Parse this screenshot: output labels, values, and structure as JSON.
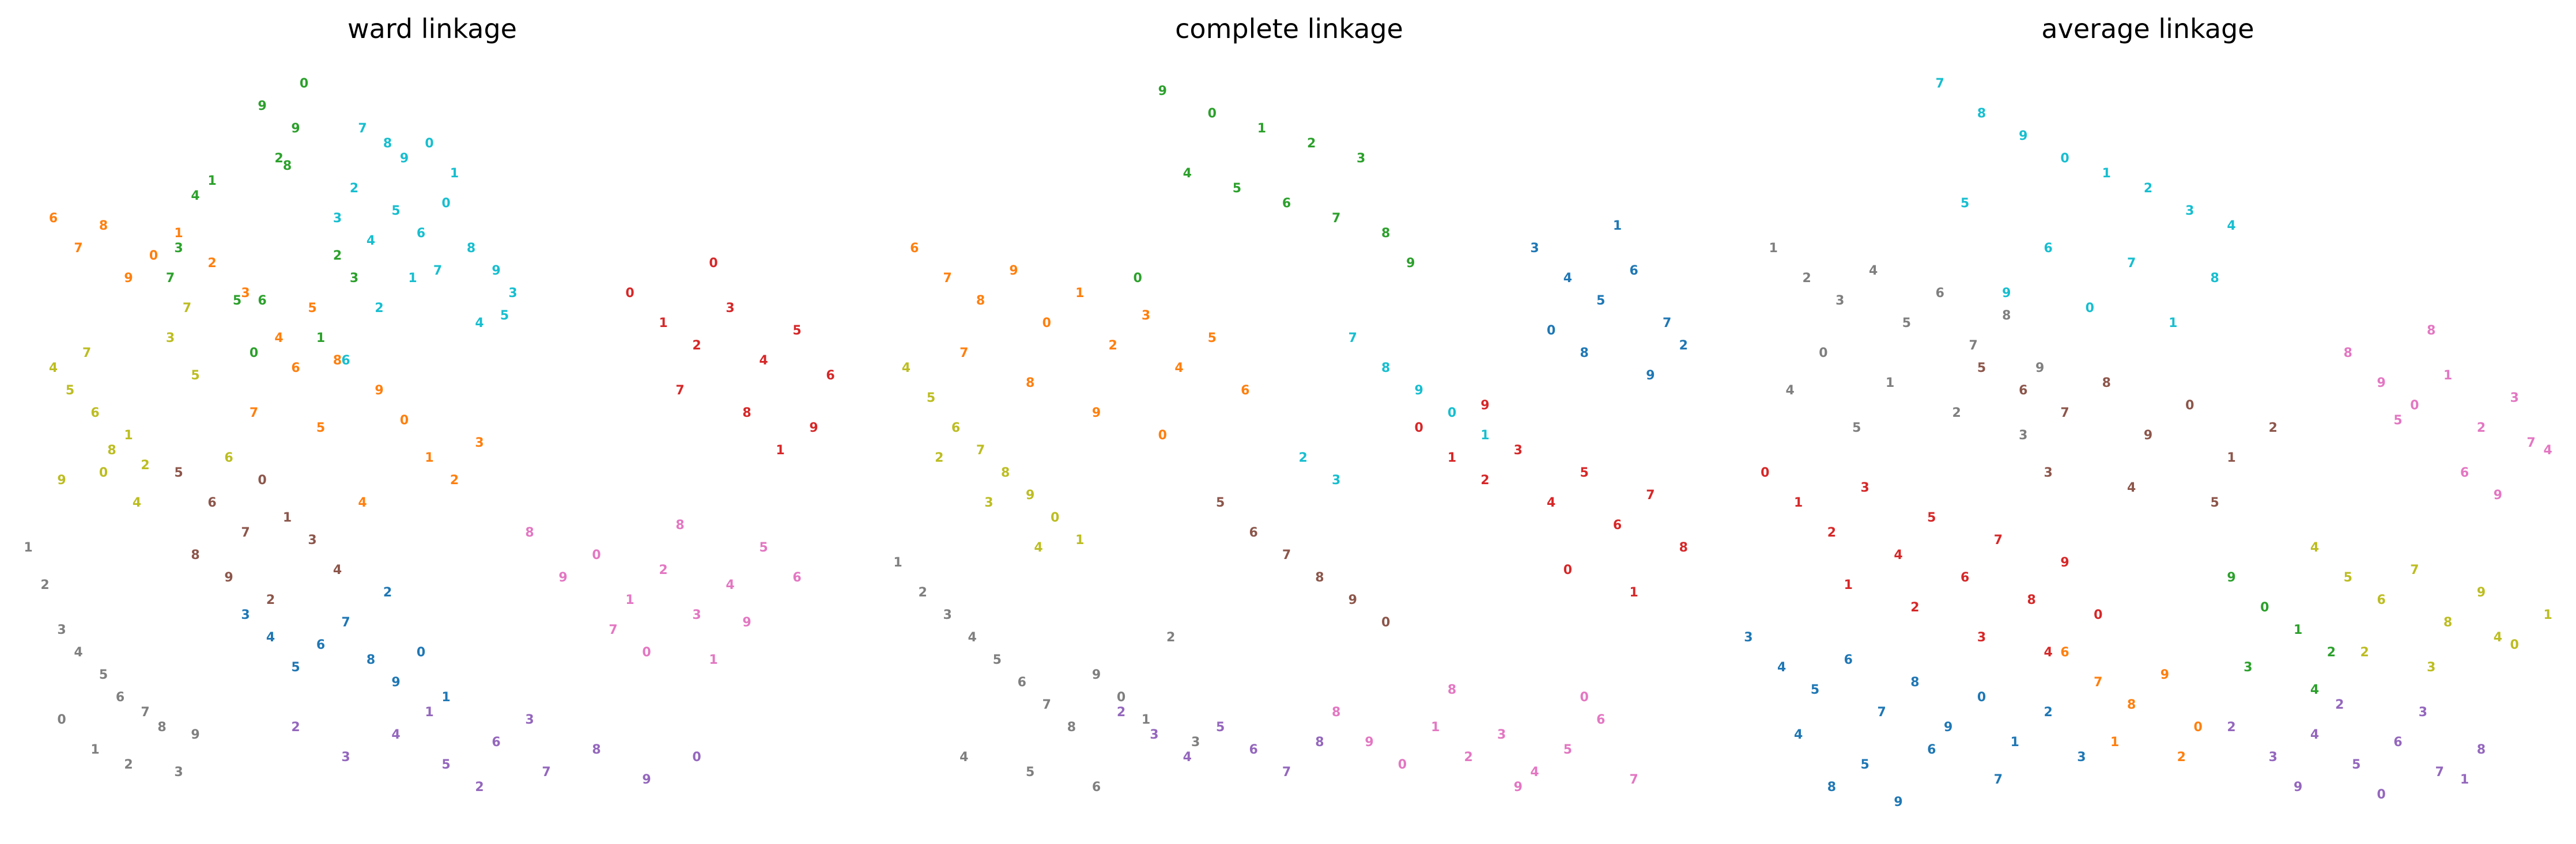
{
  "colors": {
    "0": "#d62728",
    "1": "#1f77b4",
    "2": "#ff7f0e",
    "3": "#2ca02c",
    "4": "#9467bd",
    "5": "#8c564b",
    "6": "#e377c2",
    "7": "#7f7f7f",
    "8": "#bcbd22",
    "9": "#17becf"
  },
  "chart_data": [
    {
      "type": "scatter",
      "title": "ward linkage",
      "grid": false,
      "axes": "off",
      "cluster_colors": [
        "#d62728",
        "#1f77b4",
        "#ff7f0e",
        "#2ca02c",
        "#9467bd",
        "#8c564b",
        "#e377c2",
        "#7f7f7f",
        "#bcbd22",
        "#17becf"
      ],
      "groups": [
        {
          "cluster": 3,
          "x": [
            0.3,
            0.35,
            0.24,
            0.32,
            0.2,
            0.22,
            0.27,
            0.3,
            0.19,
            0.33,
            0.34,
            0.29,
            0.37,
            0.39,
            0.41
          ],
          "y": [
            0.93,
            0.96,
            0.83,
            0.86,
            0.74,
            0.81,
            0.67,
            0.67,
            0.7,
            0.85,
            0.9,
            0.6,
            0.62,
            0.73,
            0.7
          ]
        },
        {
          "cluster": 9,
          "x": [
            0.42,
            0.45,
            0.47,
            0.5,
            0.53,
            0.41,
            0.39,
            0.43,
            0.46,
            0.49,
            0.51,
            0.55,
            0.58,
            0.52,
            0.48,
            0.44,
            0.6,
            0.56,
            0.59,
            0.4
          ],
          "y": [
            0.9,
            0.88,
            0.86,
            0.88,
            0.84,
            0.82,
            0.78,
            0.75,
            0.79,
            0.76,
            0.71,
            0.74,
            0.71,
            0.8,
            0.7,
            0.66,
            0.68,
            0.64,
            0.65,
            0.59
          ]
        },
        {
          "cluster": 8,
          "x": [
            0.05,
            0.07,
            0.1,
            0.09,
            0.12,
            0.06,
            0.11,
            0.14,
            0.16,
            0.19,
            0.15,
            0.22,
            0.26,
            0.21
          ],
          "y": [
            0.58,
            0.55,
            0.52,
            0.6,
            0.47,
            0.43,
            0.44,
            0.49,
            0.45,
            0.62,
            0.4,
            0.57,
            0.46,
            0.66
          ]
        },
        {
          "cluster": 2,
          "x": [
            0.05,
            0.08,
            0.11,
            0.14,
            0.17,
            0.2,
            0.24,
            0.28,
            0.32,
            0.36,
            0.34,
            0.29,
            0.39,
            0.44,
            0.47,
            0.5,
            0.53,
            0.56,
            0.42,
            0.37
          ],
          "y": [
            0.78,
            0.74,
            0.77,
            0.7,
            0.73,
            0.76,
            0.72,
            0.68,
            0.62,
            0.66,
            0.58,
            0.52,
            0.59,
            0.55,
            0.51,
            0.46,
            0.43,
            0.48,
            0.4,
            0.5
          ]
        },
        {
          "cluster": 7,
          "x": [
            0.02,
            0.04,
            0.06,
            0.08,
            0.11,
            0.13,
            0.16,
            0.18,
            0.22,
            0.06,
            0.1,
            0.14,
            0.2
          ],
          "y": [
            0.34,
            0.29,
            0.23,
            0.2,
            0.17,
            0.14,
            0.12,
            0.1,
            0.09,
            0.11,
            0.07,
            0.05,
            0.04
          ]
        },
        {
          "cluster": 5,
          "x": [
            0.2,
            0.24,
            0.28,
            0.22,
            0.26,
            0.3,
            0.33,
            0.31,
            0.36,
            0.39
          ],
          "y": [
            0.44,
            0.4,
            0.36,
            0.33,
            0.3,
            0.43,
            0.38,
            0.27,
            0.35,
            0.31
          ]
        },
        {
          "cluster": 1,
          "x": [
            0.28,
            0.31,
            0.34,
            0.37,
            0.4,
            0.43,
            0.46,
            0.49,
            0.52,
            0.45
          ],
          "y": [
            0.25,
            0.22,
            0.18,
            0.21,
            0.24,
            0.19,
            0.16,
            0.2,
            0.14,
            0.28
          ]
        },
        {
          "cluster": 4,
          "x": [
            0.34,
            0.4,
            0.46,
            0.52,
            0.58,
            0.64,
            0.7,
            0.76,
            0.82,
            0.5,
            0.56,
            0.62
          ],
          "y": [
            0.1,
            0.06,
            0.09,
            0.05,
            0.08,
            0.04,
            0.07,
            0.03,
            0.06,
            0.12,
            0.02,
            0.11
          ]
        },
        {
          "cluster": 6,
          "x": [
            0.62,
            0.66,
            0.7,
            0.74,
            0.78,
            0.82,
            0.86,
            0.9,
            0.94,
            0.72,
            0.8,
            0.88,
            0.76,
            0.84
          ],
          "y": [
            0.36,
            0.3,
            0.33,
            0.27,
            0.31,
            0.25,
            0.29,
            0.34,
            0.3,
            0.23,
            0.37,
            0.24,
            0.2,
            0.19
          ]
        },
        {
          "cluster": 0,
          "x": [
            0.74,
            0.78,
            0.82,
            0.86,
            0.9,
            0.94,
            0.98,
            0.8,
            0.88,
            0.96,
            0.84,
            0.92
          ],
          "y": [
            0.68,
            0.64,
            0.61,
            0.66,
            0.59,
            0.63,
            0.57,
            0.55,
            0.52,
            0.5,
            0.72,
            0.47
          ]
        }
      ]
    },
    {
      "type": "scatter",
      "title": "complete linkage",
      "grid": false,
      "axes": "off",
      "cluster_colors": [
        "#d62728",
        "#1f77b4",
        "#ff7f0e",
        "#2ca02c",
        "#9467bd",
        "#8c564b",
        "#e377c2",
        "#7f7f7f",
        "#bcbd22",
        "#17becf"
      ],
      "groups": [
        {
          "cluster": 3,
          "x": [
            0.35,
            0.41,
            0.47,
            0.53,
            0.59,
            0.38,
            0.44,
            0.5,
            0.56,
            0.62,
            0.65,
            0.32
          ],
          "y": [
            0.95,
            0.92,
            0.9,
            0.88,
            0.86,
            0.84,
            0.82,
            0.8,
            0.78,
            0.76,
            0.72,
            0.7
          ]
        },
        {
          "cluster": 2,
          "x": [
            0.05,
            0.09,
            0.13,
            0.17,
            0.21,
            0.25,
            0.29,
            0.33,
            0.37,
            0.41,
            0.45,
            0.11,
            0.19,
            0.27,
            0.35
          ],
          "y": [
            0.74,
            0.7,
            0.67,
            0.71,
            0.64,
            0.68,
            0.61,
            0.65,
            0.58,
            0.62,
            0.55,
            0.6,
            0.56,
            0.52,
            0.49
          ]
        },
        {
          "cluster": 8,
          "x": [
            0.04,
            0.07,
            0.1,
            0.13,
            0.16,
            0.19,
            0.22,
            0.25,
            0.08,
            0.14,
            0.2
          ],
          "y": [
            0.58,
            0.54,
            0.5,
            0.47,
            0.44,
            0.41,
            0.38,
            0.35,
            0.46,
            0.4,
            0.34
          ]
        },
        {
          "cluster": 7,
          "x": [
            0.03,
            0.06,
            0.09,
            0.12,
            0.15,
            0.18,
            0.21,
            0.24,
            0.27,
            0.3,
            0.33,
            0.36,
            0.39,
            0.11,
            0.19,
            0.27
          ],
          "y": [
            0.32,
            0.28,
            0.25,
            0.22,
            0.19,
            0.16,
            0.13,
            0.1,
            0.17,
            0.14,
            0.11,
            0.22,
            0.08,
            0.06,
            0.04,
            0.02
          ]
        },
        {
          "cluster": 9,
          "x": [
            0.58,
            0.62,
            0.66,
            0.7,
            0.74,
            0.52,
            0.56
          ],
          "y": [
            0.62,
            0.58,
            0.55,
            0.52,
            0.49,
            0.46,
            0.43
          ]
        },
        {
          "cluster": 5,
          "x": [
            0.42,
            0.46,
            0.5,
            0.54,
            0.58,
            0.62
          ],
          "y": [
            0.4,
            0.36,
            0.33,
            0.3,
            0.27,
            0.24
          ]
        },
        {
          "cluster": 4,
          "x": [
            0.3,
            0.34,
            0.38,
            0.42,
            0.46,
            0.5,
            0.54
          ],
          "y": [
            0.12,
            0.09,
            0.06,
            0.1,
            0.07,
            0.04,
            0.08
          ]
        },
        {
          "cluster": 6,
          "x": [
            0.56,
            0.6,
            0.64,
            0.68,
            0.72,
            0.76,
            0.8,
            0.84,
            0.88,
            0.92,
            0.7,
            0.78,
            0.86
          ],
          "y": [
            0.12,
            0.08,
            0.05,
            0.1,
            0.06,
            0.09,
            0.04,
            0.07,
            0.11,
            0.03,
            0.15,
            0.02,
            0.14
          ]
        },
        {
          "cluster": 0,
          "x": [
            0.66,
            0.7,
            0.74,
            0.78,
            0.82,
            0.86,
            0.9,
            0.94,
            0.98,
            0.74,
            0.84,
            0.92
          ],
          "y": [
            0.5,
            0.46,
            0.43,
            0.47,
            0.4,
            0.44,
            0.37,
            0.41,
            0.34,
            0.53,
            0.31,
            0.28
          ]
        },
        {
          "cluster": 1,
          "x": [
            0.8,
            0.84,
            0.88,
            0.92,
            0.96,
            0.86,
            0.94,
            0.82,
            0.9,
            0.98
          ],
          "y": [
            0.74,
            0.7,
            0.67,
            0.71,
            0.64,
            0.6,
            0.57,
            0.63,
            0.77,
            0.61
          ]
        }
      ]
    },
    {
      "type": "scatter",
      "title": "average linkage",
      "grid": false,
      "axes": "off",
      "cluster_colors": [
        "#d62728",
        "#1f77b4",
        "#ff7f0e",
        "#2ca02c",
        "#9467bd",
        "#8c564b",
        "#e377c2",
        "#7f7f7f",
        "#bcbd22",
        "#17becf"
      ],
      "groups": [
        {
          "cluster": 9,
          "x": [
            0.25,
            0.3,
            0.35,
            0.4,
            0.45,
            0.5,
            0.55,
            0.6,
            0.28,
            0.38,
            0.48,
            0.58,
            0.33,
            0.43,
            0.53
          ],
          "y": [
            0.96,
            0.92,
            0.89,
            0.86,
            0.84,
            0.82,
            0.79,
            0.77,
            0.8,
            0.74,
            0.72,
            0.7,
            0.68,
            0.66,
            0.64
          ]
        },
        {
          "cluster": 7,
          "x": [
            0.05,
            0.09,
            0.13,
            0.17,
            0.21,
            0.25,
            0.29,
            0.33,
            0.37,
            0.11,
            0.19,
            0.27,
            0.35,
            0.07,
            0.15
          ],
          "y": [
            0.74,
            0.7,
            0.67,
            0.71,
            0.64,
            0.68,
            0.61,
            0.65,
            0.58,
            0.6,
            0.56,
            0.52,
            0.49,
            0.55,
            0.5
          ]
        },
        {
          "cluster": 5,
          "x": [
            0.3,
            0.35,
            0.4,
            0.45,
            0.5,
            0.55,
            0.6,
            0.65,
            0.38,
            0.48,
            0.58
          ],
          "y": [
            0.58,
            0.55,
            0.52,
            0.56,
            0.49,
            0.53,
            0.46,
            0.5,
            0.44,
            0.42,
            0.4
          ]
        },
        {
          "cluster": 0,
          "x": [
            0.04,
            0.08,
            0.12,
            0.16,
            0.2,
            0.24,
            0.28,
            0.32,
            0.36,
            0.4,
            0.44,
            0.14,
            0.22,
            0.3,
            0.38
          ],
          "y": [
            0.44,
            0.4,
            0.36,
            0.42,
            0.33,
            0.38,
            0.3,
            0.35,
            0.27,
            0.32,
            0.25,
            0.29,
            0.26,
            0.22,
            0.2
          ]
        },
        {
          "cluster": 1,
          "x": [
            0.02,
            0.06,
            0.1,
            0.14,
            0.18,
            0.22,
            0.26,
            0.3,
            0.34,
            0.38,
            0.42,
            0.08,
            0.16,
            0.24,
            0.32,
            0.12,
            0.2
          ],
          "y": [
            0.22,
            0.18,
            0.15,
            0.19,
            0.12,
            0.16,
            0.1,
            0.14,
            0.08,
            0.12,
            0.06,
            0.09,
            0.05,
            0.07,
            0.03,
            0.02,
            0.0
          ]
        },
        {
          "cluster": 8,
          "x": [
            0.7,
            0.74,
            0.78,
            0.82,
            0.86,
            0.9,
            0.94,
            0.98,
            0.76,
            0.84,
            0.92
          ],
          "y": [
            0.34,
            0.3,
            0.27,
            0.31,
            0.24,
            0.28,
            0.21,
            0.25,
            0.2,
            0.18,
            0.22
          ]
        },
        {
          "cluster": 3,
          "x": [
            0.6,
            0.64,
            0.68,
            0.72,
            0.62,
            0.7
          ],
          "y": [
            0.3,
            0.26,
            0.23,
            0.2,
            0.18,
            0.15
          ]
        },
        {
          "cluster": 4,
          "x": [
            0.6,
            0.65,
            0.7,
            0.75,
            0.8,
            0.85,
            0.9,
            0.68,
            0.78,
            0.88,
            0.73,
            0.83
          ],
          "y": [
            0.1,
            0.06,
            0.09,
            0.05,
            0.08,
            0.04,
            0.07,
            0.02,
            0.01,
            0.03,
            0.13,
            0.12
          ]
        },
        {
          "cluster": 6,
          "x": [
            0.74,
            0.78,
            0.82,
            0.86,
            0.9,
            0.94,
            0.98,
            0.8,
            0.88,
            0.96,
            0.84,
            0.92
          ],
          "y": [
            0.6,
            0.56,
            0.53,
            0.57,
            0.5,
            0.54,
            0.47,
            0.51,
            0.44,
            0.48,
            0.63,
            0.41
          ]
        },
        {
          "cluster": 2,
          "x": [
            0.4,
            0.44,
            0.48,
            0.52,
            0.56,
            0.46,
            0.54
          ],
          "y": [
            0.2,
            0.16,
            0.13,
            0.17,
            0.1,
            0.08,
            0.06
          ]
        }
      ]
    }
  ],
  "panels": [
    {
      "title": "ward linkage"
    },
    {
      "title": "complete linkage"
    },
    {
      "title": "average linkage"
    }
  ]
}
